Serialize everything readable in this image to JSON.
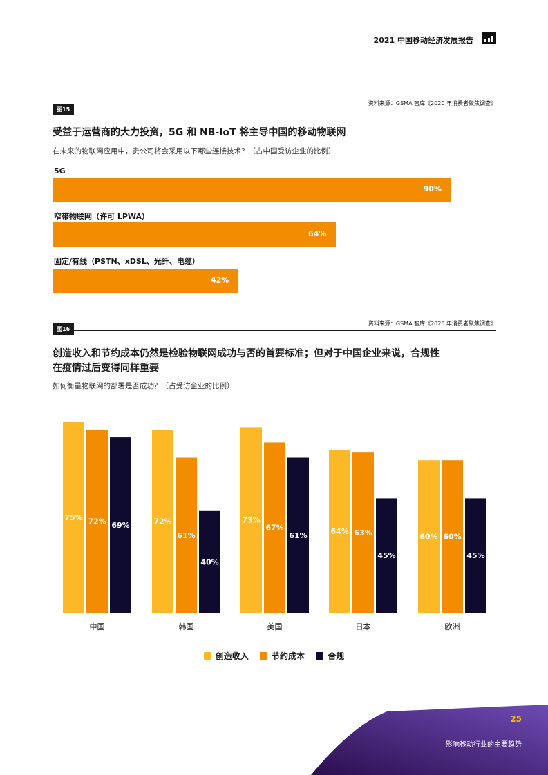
{
  "header": {
    "report_title": "2021 中国移动经济发展报告"
  },
  "figure15": {
    "tag": "图15",
    "source": "资料来源：GSMA 智库《2020 年消费者聚焦调查》",
    "title": "受益于运营商的大力投资，5G 和 NB-IoT 将主导中国的移动物联网",
    "subtitle": "在未来的物联网应用中，贵公司将会采用以下哪些连接技术？（占中国受访企业的比例）",
    "bars": [
      {
        "label": "5G",
        "value": 90,
        "value_label": "90%"
      },
      {
        "label": "窄带物联网（许可 LPWA）",
        "value": 64,
        "value_label": "64%"
      },
      {
        "label": "固定/有线（PSTN、xDSL、光纤、电缆）",
        "value": 42,
        "value_label": "42%"
      }
    ]
  },
  "figure16": {
    "tag": "图16",
    "source": "资料来源：GSMA 智库《2020 年消费者聚焦调查》",
    "title_line1": "创造收入和节约成本仍然是检验物联网成功与否的首要标准；但对于中国企业来说，合规性",
    "title_line2": "在疫情过后变得同样重要",
    "subtitle": "如何衡量物联网的部署是否成功？（占受访企业的比例）"
  },
  "chart_data": [
    {
      "type": "bar",
      "orientation": "horizontal",
      "title": "受益于运营商的大力投资，5G 和 NB-IoT 将主导中国的移动物联网",
      "categories": [
        "5G",
        "窄带物联网（许可 LPWA）",
        "固定/有线（PSTN、xDSL、光纤、电缆）"
      ],
      "values": [
        90,
        64,
        42
      ],
      "unit": "%"
    },
    {
      "type": "bar",
      "title": "创造收入和节约成本仍然是检验物联网成功与否的首要标准；但对于中国企业来说，合规性在疫情过后变得同样重要",
      "categories": [
        "中国",
        "韩国",
        "美国",
        "日本",
        "欧洲"
      ],
      "series": [
        {
          "name": "创造收入",
          "color": "#FDB827",
          "values": [
            75,
            72,
            73,
            64,
            60
          ],
          "labels": [
            "75%",
            "72%",
            "73%",
            "64%",
            "60%"
          ]
        },
        {
          "name": "节约成本",
          "color": "#F28C00",
          "values": [
            72,
            61,
            67,
            63,
            60
          ],
          "labels": [
            "72%",
            "61%",
            "67%",
            "63%",
            "60%"
          ]
        },
        {
          "name": "合规",
          "color": "#0E0B2E",
          "values": [
            69,
            40,
            61,
            45,
            45
          ],
          "labels": [
            "69%",
            "40%",
            "61%",
            "45%",
            "45%"
          ]
        }
      ],
      "legend": "bottom-center",
      "unit": "%"
    }
  ],
  "footer": {
    "page_number": "25",
    "section": "影响移动行业的主要趋势"
  }
}
